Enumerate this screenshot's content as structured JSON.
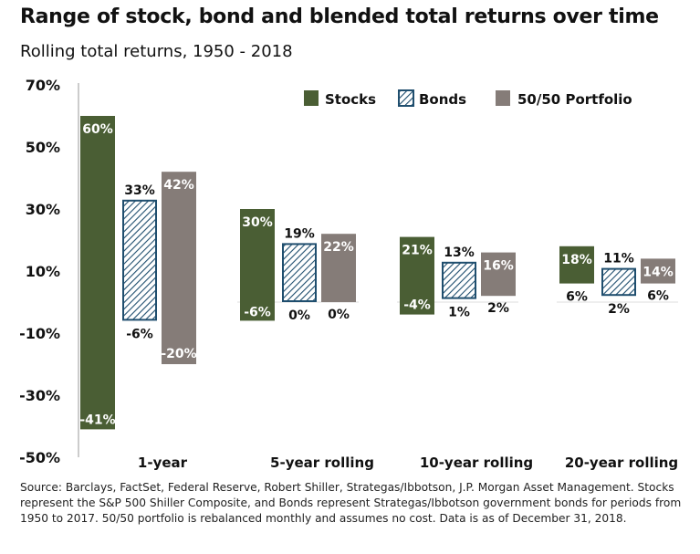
{
  "header": {
    "title": "Range of stock, bond and blended total returns over time",
    "subtitle": "Rolling total returns, 1950 - 2018"
  },
  "footnote": "Source: Barclays, FactSet, Federal Reserve, Robert Shiller, Strategas/Ibbotson, J.P. Morgan Asset Management. Stocks represent the S&P 500 Shiller Composite, and Bonds represent Strategas/Ibbotson government bonds for periods from 1950 to 2017. 50/50 portfolio is rebalanced monthly and assumes no cost. Data is as of December 31, 2018.",
  "colors": {
    "stocks": "#4a5e34",
    "bonds_stroke": "#1f4e6e",
    "portfolio": "#857c78"
  },
  "chart_data": {
    "type": "bar",
    "subtype": "floating-range",
    "title": "Range of stock, bond and blended total returns over time",
    "subtitle": "Rolling total returns, 1950 - 2018",
    "categories": [
      "1-year",
      "5-year rolling",
      "10-year rolling",
      "20-year rolling"
    ],
    "ylim": [
      -50,
      70
    ],
    "yticks": [
      70,
      50,
      30,
      10,
      -10,
      -30,
      -50
    ],
    "ytick_labels": [
      "70%",
      "50%",
      "30%",
      "10%",
      "-10%",
      "-30%",
      "-50%"
    ],
    "legend_position": "top-right",
    "grid": false,
    "series": [
      {
        "name": "Stocks",
        "pattern": "solid",
        "high": [
          60,
          30,
          21,
          18
        ],
        "low": [
          -41,
          -6,
          -4,
          6
        ],
        "high_labels": [
          "60%",
          "30%",
          "21%",
          "18%"
        ],
        "low_labels": [
          "-41%",
          "-6%",
          "-4%",
          "6%"
        ]
      },
      {
        "name": "Bonds",
        "pattern": "hatched",
        "high": [
          33,
          19,
          13,
          11
        ],
        "low": [
          -6,
          0,
          1,
          2
        ],
        "high_labels": [
          "33%",
          "19%",
          "13%",
          "11%"
        ],
        "low_labels": [
          "-6%",
          "0%",
          "1%",
          "2%"
        ]
      },
      {
        "name": "50/50 Portfolio",
        "pattern": "solid",
        "high": [
          42,
          22,
          16,
          14
        ],
        "low": [
          -20,
          0,
          2,
          6
        ],
        "high_labels": [
          "42%",
          "22%",
          "16%",
          "14%"
        ],
        "low_labels": [
          "-20%",
          "0%",
          "2%",
          "6%"
        ]
      }
    ]
  }
}
